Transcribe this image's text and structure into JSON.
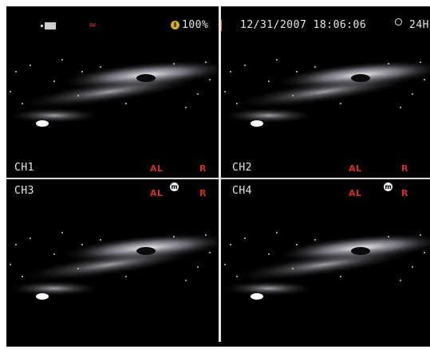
{
  "status_bar": {
    "icons": [
      "hdd-icon",
      "network-icon",
      "disk-icon",
      "clock-icon"
    ],
    "disk_usage": "100%",
    "datetime": "12/31/2007 18:06:06",
    "time_format": "24H"
  },
  "channels": [
    {
      "label": "CH1",
      "alarm": "AL",
      "record": "R",
      "motion_badge": ""
    },
    {
      "label": "CH2",
      "alarm": "AL",
      "record": "R",
      "motion_badge": ""
    },
    {
      "label": "CH3",
      "alarm": "AL",
      "record": "R",
      "motion_badge": "m"
    },
    {
      "label": "CH4",
      "alarm": "AL",
      "record": "R",
      "motion_badge": "m"
    }
  ],
  "colors": {
    "background": "#000000",
    "osd_text": "#e8e8e8",
    "alarm_text": "#d43020",
    "divider": "#e8e8e8"
  }
}
